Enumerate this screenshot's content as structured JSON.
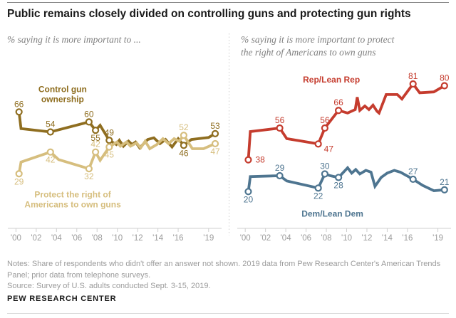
{
  "header": {
    "title": "Public remains closely divided on controlling guns and protecting gun rights"
  },
  "footer": {
    "notes_lines": [
      "Notes: Share of respondents who didn't offer an answer not shown. 2019 data from Pew Research Center's American Trends",
      "Panel; prior data from telephone surveys."
    ],
    "source": "Source: Survey of U.S. adults conducted Sept. 3-15, 2019.",
    "brand": "PEW RESEARCH CENTER"
  },
  "colors": {
    "control_line": "#8F6E20",
    "protect_line": "#D6BE7E",
    "rep_line": "#C53C2E",
    "dem_line": "#4E7590",
    "axis": "#cfcfcf",
    "tick_label": "#9b9b9b",
    "divider": "#cccccc"
  },
  "chart_data": [
    {
      "type": "line",
      "panel": "left",
      "subtitle_lines": [
        "% saying it is more important to ..."
      ],
      "xlim": [
        1999.2,
        2020.5
      ],
      "ylim": [
        0,
        90
      ],
      "x_axis": {
        "ticks": [
          2000,
          2002,
          2004,
          2006,
          2008,
          2010,
          2012,
          2014,
          2016,
          2019
        ],
        "tick_labels": [
          "'00",
          "'02",
          "'04",
          "'06",
          "'08",
          "'10",
          "'12",
          "'14",
          "'16",
          "'19"
        ]
      },
      "series": [
        {
          "name": "Control gun ownership",
          "color": "#8F6E20",
          "name_label": {
            "lines": [
              "Control gun",
              "ownership"
            ],
            "year": 2004.6,
            "value": 76.5
          },
          "points": [
            [
              2000.3,
              66
            ],
            [
              2000.5,
              56
            ],
            [
              2003.4,
              54
            ],
            [
              2007.2,
              60
            ],
            [
              2007.85,
              55
            ],
            [
              2008.3,
              58
            ],
            [
              2009.2,
              49
            ],
            [
              2009.9,
              46.5
            ],
            [
              2010.2,
              49
            ],
            [
              2010.6,
              45.5
            ],
            [
              2011.1,
              48.5
            ],
            [
              2011.45,
              46.5
            ],
            [
              2011.8,
              48
            ],
            [
              2012.2,
              44.5
            ],
            [
              2013.0,
              49.5
            ],
            [
              2013.6,
              50.5
            ],
            [
              2014.2,
              47
            ],
            [
              2014.75,
              49.5
            ],
            [
              2015.4,
              45
            ],
            [
              2016.0,
              50
            ],
            [
              2016.55,
              46
            ],
            [
              2017.3,
              49.5
            ],
            [
              2018.4,
              50.3
            ],
            [
              2019.0,
              50.7
            ],
            [
              2019.65,
              53
            ]
          ],
          "labeled_points": [
            {
              "year": 2000.3,
              "value": 66,
              "label": "66",
              "pos": "above"
            },
            {
              "year": 2003.4,
              "value": 54,
              "label": "54",
              "pos": "above"
            },
            {
              "year": 2007.2,
              "value": 60,
              "label": "60",
              "pos": "above"
            },
            {
              "year": 2007.85,
              "value": 55,
              "label": "55",
              "pos": "below"
            },
            {
              "year": 2009.2,
              "value": 49,
              "label": "49",
              "pos": "above"
            },
            {
              "year": 2016.55,
              "value": 46,
              "label": "46",
              "pos": "below"
            },
            {
              "year": 2019.65,
              "value": 53,
              "label": "53",
              "pos": "above"
            }
          ]
        },
        {
          "name": "Protect the right of Americans to own guns",
          "color": "#D6BE7E",
          "name_label": {
            "lines": [
              "Protect the right of",
              "Americans to own guns"
            ],
            "year": 2005.6,
            "value": 13.5
          },
          "points": [
            [
              2000.3,
              29
            ],
            [
              2000.5,
              36
            ],
            [
              2003.4,
              42
            ],
            [
              2004.2,
              37.5
            ],
            [
              2007.2,
              32
            ],
            [
              2007.85,
              42
            ],
            [
              2008.3,
              37
            ],
            [
              2009.2,
              45
            ],
            [
              2009.95,
              48
            ],
            [
              2010.3,
              45.5
            ],
            [
              2010.9,
              48
            ],
            [
              2011.3,
              45.5
            ],
            [
              2011.9,
              47.5
            ],
            [
              2012.3,
              44.5
            ],
            [
              2012.75,
              48.5
            ],
            [
              2013.2,
              44
            ],
            [
              2013.9,
              46.5
            ],
            [
              2014.5,
              50
            ],
            [
              2015.05,
              47
            ],
            [
              2015.6,
              50
            ],
            [
              2016.1,
              48.5
            ],
            [
              2016.55,
              52
            ],
            [
              2017.4,
              44
            ],
            [
              2018.5,
              44
            ],
            [
              2019.65,
              47
            ]
          ],
          "labeled_points": [
            {
              "year": 2000.3,
              "value": 29,
              "label": "29",
              "pos": "below"
            },
            {
              "year": 2003.4,
              "value": 42,
              "label": "42",
              "pos": "below"
            },
            {
              "year": 2007.2,
              "value": 32,
              "label": "32",
              "pos": "below"
            },
            {
              "year": 2007.85,
              "value": 42,
              "label": "42",
              "pos": "above"
            },
            {
              "year": 2009.2,
              "value": 45,
              "label": "45",
              "pos": "below"
            },
            {
              "year": 2016.55,
              "value": 52,
              "label": "52",
              "pos": "above"
            },
            {
              "year": 2019.65,
              "value": 47,
              "label": "47",
              "pos": "below"
            }
          ]
        }
      ]
    },
    {
      "type": "line",
      "panel": "right",
      "subtitle_lines": [
        "% saying it is more important to protect",
        "the right of Americans to own guns"
      ],
      "xlim": [
        1999.2,
        2020.5
      ],
      "ylim": [
        0,
        95
      ],
      "x_axis": {
        "ticks": [
          2000,
          2002,
          2004,
          2006,
          2008,
          2010,
          2012,
          2014,
          2016,
          2019
        ],
        "tick_labels": [
          "'00",
          "'02",
          "'04",
          "'06",
          "'08",
          "'10",
          "'12",
          "'14",
          "'16",
          "'19"
        ]
      },
      "series": [
        {
          "name": "Rep/Lean Rep",
          "color": "#C53C2E",
          "name_label": {
            "lines": [
              "Rep/Lean Rep"
            ],
            "year": 2008.5,
            "value": 83.5
          },
          "points": [
            [
              2000.3,
              38
            ],
            [
              2000.5,
              54
            ],
            [
              2003.4,
              56
            ],
            [
              2004.1,
              50
            ],
            [
              2007.2,
              47
            ],
            [
              2007.85,
              56
            ],
            [
              2009.2,
              66
            ],
            [
              2010.1,
              64.5
            ],
            [
              2010.85,
              66.5
            ],
            [
              2011.05,
              73.5
            ],
            [
              2011.3,
              66
            ],
            [
              2011.8,
              68.5
            ],
            [
              2012.2,
              66.5
            ],
            [
              2012.6,
              69
            ],
            [
              2013.0,
              65.5
            ],
            [
              2013.2,
              64.5
            ],
            [
              2013.9,
              75
            ],
            [
              2015.0,
              75
            ],
            [
              2015.45,
              72.5
            ],
            [
              2016.55,
              81
            ],
            [
              2017.2,
              76
            ],
            [
              2018.6,
              76.5
            ],
            [
              2019.65,
              80
            ]
          ],
          "labeled_points": [
            {
              "year": 2000.3,
              "value": 38,
              "label": "38",
              "pos": "right"
            },
            {
              "year": 2003.4,
              "value": 56,
              "label": "56",
              "pos": "above"
            },
            {
              "year": 2007.2,
              "value": 47,
              "label": "47",
              "pos": "below-right"
            },
            {
              "year": 2007.85,
              "value": 56,
              "label": "56",
              "pos": "above"
            },
            {
              "year": 2009.2,
              "value": 66,
              "label": "66",
              "pos": "above"
            },
            {
              "year": 2016.55,
              "value": 81,
              "label": "81",
              "pos": "above"
            },
            {
              "year": 2019.65,
              "value": 80,
              "label": "80",
              "pos": "above"
            }
          ]
        },
        {
          "name": "Dem/Lean Dem",
          "color": "#4E7590",
          "name_label": {
            "lines": [
              "Dem/Lean Dem"
            ],
            "year": 2008.6,
            "value": 7.5
          },
          "points": [
            [
              2000.3,
              20
            ],
            [
              2000.5,
              28.5
            ],
            [
              2003.4,
              29
            ],
            [
              2004.1,
              26
            ],
            [
              2007.2,
              22
            ],
            [
              2007.85,
              30
            ],
            [
              2008.4,
              29
            ],
            [
              2009.2,
              28
            ],
            [
              2010.1,
              33.5
            ],
            [
              2010.5,
              30.5
            ],
            [
              2010.9,
              32.5
            ],
            [
              2011.3,
              30
            ],
            [
              2011.9,
              32
            ],
            [
              2012.4,
              31
            ],
            [
              2012.8,
              23
            ],
            [
              2013.4,
              28
            ],
            [
              2014.0,
              30.5
            ],
            [
              2014.7,
              32
            ],
            [
              2015.3,
              31
            ],
            [
              2016.55,
              27
            ],
            [
              2017.5,
              23.5
            ],
            [
              2018.6,
              20.5
            ],
            [
              2019.65,
              21
            ]
          ],
          "labeled_points": [
            {
              "year": 2000.3,
              "value": 20,
              "label": "20",
              "pos": "below"
            },
            {
              "year": 2003.4,
              "value": 29,
              "label": "29",
              "pos": "above"
            },
            {
              "year": 2007.2,
              "value": 22,
              "label": "22",
              "pos": "below"
            },
            {
              "year": 2007.85,
              "value": 30,
              "label": "30",
              "pos": "above"
            },
            {
              "year": 2009.2,
              "value": 28,
              "label": "28",
              "pos": "below"
            },
            {
              "year": 2016.55,
              "value": 27,
              "label": "27",
              "pos": "above"
            },
            {
              "year": 2019.65,
              "value": 21,
              "label": "21",
              "pos": "above"
            }
          ]
        }
      ]
    }
  ]
}
